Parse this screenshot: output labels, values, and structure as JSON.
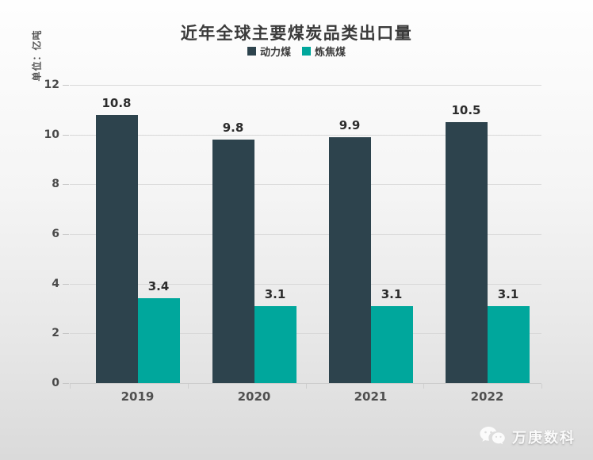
{
  "title": "近年全球主要煤炭品类出口量",
  "watermark": {
    "text": "万庚数科",
    "icon": "wechat-icon"
  },
  "colors": {
    "series_thermal": "#2d434d",
    "series_coking": "#00a79c",
    "grid": "#d9d9d9",
    "background_top": "#fefefe",
    "background_bottom": "#dadada"
  },
  "chart_data": {
    "type": "bar",
    "categories": [
      "2019",
      "2020",
      "2021",
      "2022"
    ],
    "series": [
      {
        "name": "动力煤",
        "color": "#2d434d",
        "values": [
          10.8,
          9.8,
          9.9,
          10.5
        ]
      },
      {
        "name": "炼焦煤",
        "color": "#00a79c",
        "values": [
          3.4,
          3.1,
          3.1,
          3.1
        ]
      }
    ],
    "title": "近年全球主要煤炭品类出口量",
    "xlabel": "",
    "ylabel": "单位：亿吨",
    "ylim": [
      0,
      12
    ],
    "yticks": [
      0,
      2,
      4,
      6,
      8,
      10,
      12
    ],
    "grid": true,
    "legend_position": "top",
    "value_labels": true
  }
}
